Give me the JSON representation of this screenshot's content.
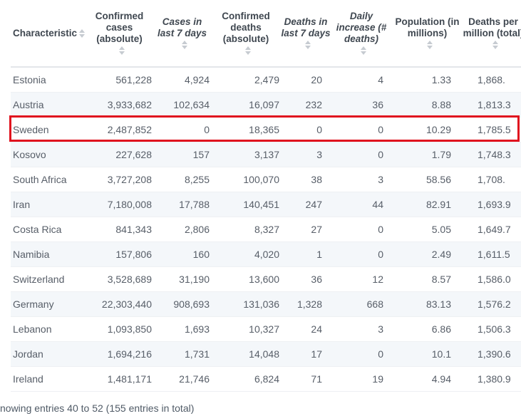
{
  "table": {
    "headers": [
      {
        "label": "Characteristic",
        "italic": false
      },
      {
        "label": "Confirmed cases (absolute)",
        "italic": false
      },
      {
        "label": "Cases in last 7 days",
        "italic": true
      },
      {
        "label": "Confirmed deaths (absolute)",
        "italic": false
      },
      {
        "label": "Deaths in last 7 days",
        "italic": true
      },
      {
        "label": "Daily increase (# deaths)",
        "italic": true
      },
      {
        "label": "Population (in millions)",
        "italic": false
      },
      {
        "label": "Deaths per million (total)",
        "italic": false
      }
    ],
    "rows": [
      [
        "Estonia",
        "561,228",
        "4,924",
        "2,479",
        "20",
        "4",
        "1.33",
        "1,868."
      ],
      [
        "Austria",
        "3,933,682",
        "102,634",
        "16,097",
        "232",
        "36",
        "8.88",
        "1,813.3"
      ],
      [
        "Sweden",
        "2,487,852",
        "0",
        "18,365",
        "0",
        "0",
        "10.29",
        "1,785.5"
      ],
      [
        "Kosovo",
        "227,628",
        "157",
        "3,137",
        "3",
        "0",
        "1.79",
        "1,748.3"
      ],
      [
        "South Africa",
        "3,727,208",
        "8,255",
        "100,070",
        "38",
        "3",
        "58.56",
        "1,708."
      ],
      [
        "Iran",
        "7,180,008",
        "17,788",
        "140,451",
        "247",
        "44",
        "82.91",
        "1,693.9"
      ],
      [
        "Costa Rica",
        "841,343",
        "2,806",
        "8,327",
        "27",
        "0",
        "5.05",
        "1,649.7"
      ],
      [
        "Namibia",
        "157,806",
        "160",
        "4,020",
        "1",
        "0",
        "2.49",
        "1,611.5"
      ],
      [
        "Switzerland",
        "3,528,689",
        "31,190",
        "13,600",
        "36",
        "12",
        "8.57",
        "1,586.0"
      ],
      [
        "Germany",
        "22,303,440",
        "908,693",
        "131,036",
        "1,328",
        "668",
        "83.13",
        "1,576.2"
      ],
      [
        "Lebanon",
        "1,093,850",
        "1,693",
        "10,327",
        "24",
        "3",
        "6.86",
        "1,506.3"
      ],
      [
        "Jordan",
        "1,694,216",
        "1,731",
        "14,048",
        "17",
        "0",
        "10.1",
        "1,390.6"
      ],
      [
        "Ireland",
        "1,481,171",
        "21,746",
        "6,824",
        "71",
        "19",
        "4.94",
        "1,380.9"
      ]
    ],
    "highlighted_row": "Sweden",
    "highlight_color": "#e0121e"
  },
  "footer": {
    "text": "nowing entries 40 to 52 (155 entries in total)"
  }
}
